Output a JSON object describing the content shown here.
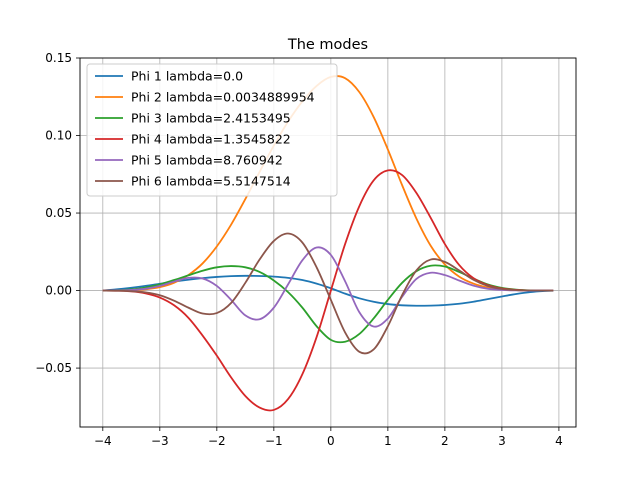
{
  "chart_data": {
    "type": "line",
    "title": "The modes",
    "xlabel": "",
    "ylabel": "",
    "xlim": [
      -4.4,
      4.3
    ],
    "ylim": [
      -0.088,
      0.15
    ],
    "x_ticks": [
      -4,
      -3,
      -2,
      -1,
      0,
      1,
      2,
      3,
      4
    ],
    "x_tick_labels": [
      "−4",
      "−3",
      "−2",
      "−1",
      "0",
      "1",
      "2",
      "3",
      "4"
    ],
    "y_ticks": [
      -0.05,
      0.0,
      0.05,
      0.1,
      0.15
    ],
    "y_tick_labels": [
      "−0.05",
      "0.00",
      "0.05",
      "0.10",
      "0.15"
    ],
    "grid": true,
    "legend_position": "upper-left",
    "x": [
      -4.0,
      -3.75,
      -3.5,
      -3.25,
      -3.0,
      -2.75,
      -2.5,
      -2.25,
      -2.0,
      -1.75,
      -1.5,
      -1.25,
      -1.0,
      -0.75,
      -0.5,
      -0.25,
      0.0,
      0.25,
      0.5,
      0.75,
      1.0,
      1.25,
      1.5,
      1.75,
      2.0,
      2.25,
      2.5,
      2.75,
      3.0,
      3.25,
      3.5,
      3.75,
      3.9
    ],
    "series": [
      {
        "name": "Phi 1 lambda=0.0",
        "color": "#1f77b4",
        "values": [
          0.0,
          0.0008,
          0.0018,
          0.003,
          0.0044,
          0.0058,
          0.007,
          0.008,
          0.0088,
          0.0093,
          0.0095,
          0.0094,
          0.009,
          0.0082,
          0.0068,
          0.0045,
          0.0015,
          -0.002,
          -0.005,
          -0.0072,
          -0.0087,
          -0.0095,
          -0.0098,
          -0.0097,
          -0.0093,
          -0.0085,
          -0.0072,
          -0.0055,
          -0.0038,
          -0.0022,
          -0.001,
          -0.0003,
          -0.0001
        ]
      },
      {
        "name": "Phi 2 lambda=0.0034889954",
        "color": "#ff7f0e",
        "values": [
          0.0,
          0.0,
          0.0002,
          0.0008,
          0.0022,
          0.005,
          0.01,
          0.0175,
          0.0285,
          0.0425,
          0.059,
          0.0765,
          0.0935,
          0.109,
          0.122,
          0.132,
          0.1378,
          0.137,
          0.128,
          0.112,
          0.091,
          0.068,
          0.0465,
          0.029,
          0.0168,
          0.009,
          0.0045,
          0.002,
          0.0008,
          0.0003,
          0.0001,
          0.0,
          0.0
        ]
      },
      {
        "name": "Phi 3 lambda=2.4153495",
        "color": "#2ca02c",
        "values": [
          0.0,
          0.0002,
          0.0008,
          0.002,
          0.004,
          0.0068,
          0.0098,
          0.0128,
          0.015,
          0.0158,
          0.015,
          0.012,
          0.0065,
          -0.001,
          -0.011,
          -0.023,
          -0.0318,
          -0.033,
          -0.028,
          -0.018,
          -0.006,
          0.005,
          0.0125,
          0.016,
          0.0155,
          0.012,
          0.0078,
          0.004,
          0.0017,
          0.0006,
          0.0001,
          0.0,
          0.0
        ]
      },
      {
        "name": "Phi 4 lambda=1.3545822",
        "color": "#d62728",
        "values": [
          0.0,
          -0.0001,
          -0.0005,
          -0.0018,
          -0.0045,
          -0.0095,
          -0.0175,
          -0.029,
          -0.042,
          -0.056,
          -0.068,
          -0.0755,
          -0.077,
          -0.07,
          -0.054,
          -0.03,
          0.0,
          0.03,
          0.0545,
          0.071,
          0.0775,
          0.0745,
          0.063,
          0.047,
          0.03,
          0.0165,
          0.008,
          0.0035,
          0.0013,
          0.0004,
          0.0001,
          0.0,
          0.0
        ]
      },
      {
        "name": "Phi 5 lambda=8.760942",
        "color": "#9467bd",
        "values": [
          0.0,
          0.0001,
          0.0004,
          0.0012,
          0.003,
          0.0058,
          0.0082,
          0.0078,
          0.003,
          -0.006,
          -0.016,
          -0.0185,
          -0.011,
          0.004,
          0.0195,
          0.0278,
          0.023,
          0.006,
          -0.014,
          -0.0232,
          -0.018,
          -0.004,
          0.0075,
          0.0115,
          0.01,
          0.0065,
          0.0032,
          0.0012,
          0.0004,
          0.0001,
          0.0,
          0.0,
          0.0
        ]
      },
      {
        "name": "Phi 6 lambda=5.5147514",
        "color": "#8c564b",
        "values": [
          0.0,
          -0.0001,
          -0.0004,
          -0.0012,
          -0.003,
          -0.0065,
          -0.011,
          -0.0148,
          -0.0145,
          -0.008,
          0.005,
          0.02,
          0.032,
          0.0368,
          0.031,
          0.015,
          -0.006,
          -0.027,
          -0.0395,
          -0.038,
          -0.023,
          -0.003,
          0.013,
          0.02,
          0.0185,
          0.013,
          0.007,
          0.003,
          0.001,
          0.0003,
          0.0001,
          0.0,
          0.0
        ]
      }
    ]
  }
}
